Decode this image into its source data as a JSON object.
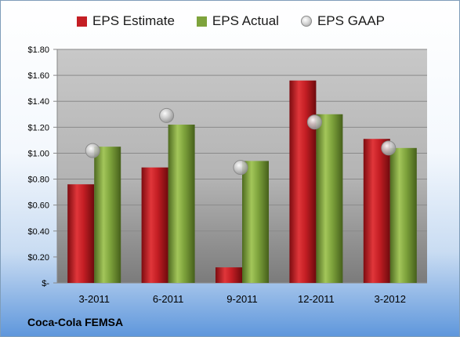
{
  "company": "Coca-Cola FEMSA",
  "chart_data": {
    "type": "bar",
    "title": "",
    "xlabel": "",
    "ylabel": "",
    "ylim": [
      0,
      1.8
    ],
    "yticks": [
      0,
      0.2,
      0.4,
      0.6,
      0.8,
      1.0,
      1.2,
      1.4,
      1.6,
      1.8
    ],
    "ytick_labels": [
      "$-",
      "$0.20",
      "$0.40",
      "$0.60",
      "$0.80",
      "$1.00",
      "$1.20",
      "$1.40",
      "$1.60",
      "$1.80"
    ],
    "grid": true,
    "legend_position": "top",
    "categories": [
      "3-2011",
      "6-2011",
      "9-2011",
      "12-2011",
      "3-2012"
    ],
    "series": [
      {
        "name": "EPS Estimate",
        "kind": "bar",
        "color": "#c41e24",
        "values": [
          0.76,
          0.89,
          0.12,
          1.56,
          1.11
        ]
      },
      {
        "name": "EPS Actual",
        "kind": "bar",
        "color": "#7ea33c",
        "values": [
          1.05,
          1.22,
          0.94,
          1.3,
          1.04
        ]
      },
      {
        "name": "EPS GAAP",
        "kind": "marker",
        "color": "#c0c0c0",
        "values": [
          1.02,
          1.29,
          0.89,
          1.24,
          1.04
        ]
      }
    ]
  }
}
